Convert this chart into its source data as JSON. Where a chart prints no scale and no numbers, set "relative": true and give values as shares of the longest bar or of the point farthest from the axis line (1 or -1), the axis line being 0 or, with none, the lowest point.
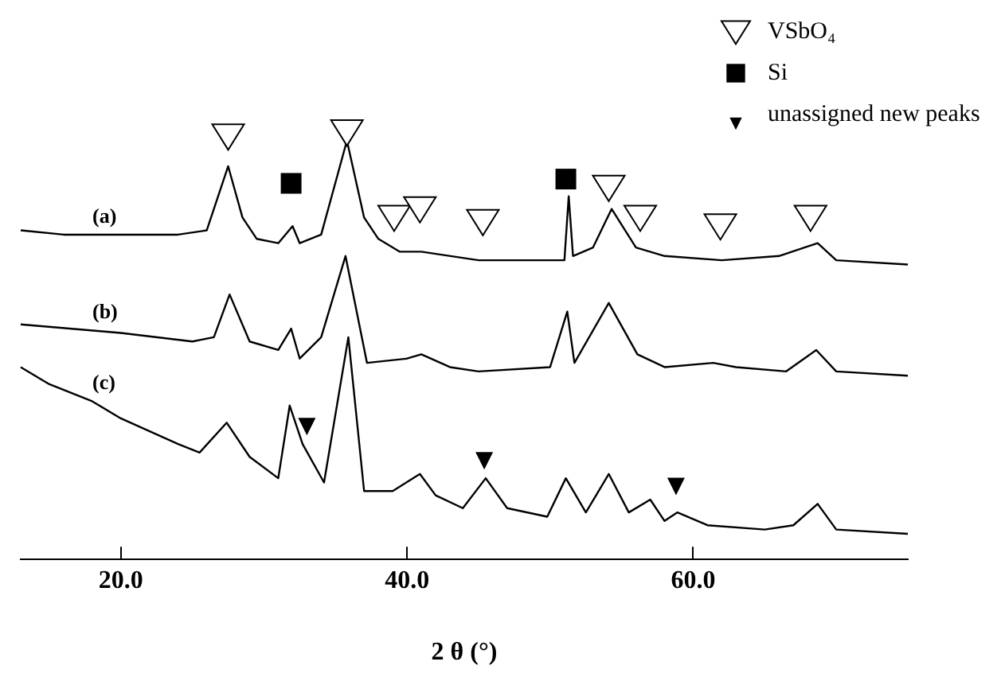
{
  "chart_data": {
    "type": "line",
    "relative": true,
    "xlabel": "2 θ (°)",
    "xlim": [
      13,
      75
    ],
    "xticks": [
      {
        "value": 20,
        "label": "20.0"
      },
      {
        "value": 40,
        "label": "40.0"
      },
      {
        "value": 60,
        "label": "60.0"
      }
    ],
    "tick_labels": "x",
    "grid": false,
    "legend": "top right",
    "marker": "none",
    "line_style": "solid",
    "series": [
      {
        "name": "(a)",
        "color": "#000000",
        "x": [
          13,
          16,
          20,
          24,
          26,
          27.5,
          28.5,
          29.5,
          31,
          32,
          32.5,
          34,
          35.8,
          37,
          38,
          39.5,
          41,
          45,
          48,
          51,
          51.3,
          51.6,
          53,
          54.3,
          56,
          58,
          62,
          66,
          68.7,
          70,
          75
        ],
        "values": [
          0.77,
          0.76,
          0.76,
          0.76,
          0.77,
          0.92,
          0.8,
          0.75,
          0.74,
          0.78,
          0.74,
          0.76,
          0.98,
          0.8,
          0.75,
          0.72,
          0.72,
          0.7,
          0.7,
          0.7,
          0.85,
          0.71,
          0.73,
          0.82,
          0.73,
          0.71,
          0.7,
          0.71,
          0.74,
          0.7,
          0.69
        ]
      },
      {
        "name": "(b)",
        "color": "#000000",
        "x": [
          13,
          20,
          25,
          26.5,
          27.6,
          29,
          31,
          31.9,
          32.5,
          34,
          35.7,
          37.2,
          40,
          41,
          43,
          45,
          50,
          51.2,
          51.7,
          54.1,
          56.1,
          58,
          61.4,
          63,
          66.5,
          68.6,
          70,
          75
        ],
        "values": [
          0.55,
          0.53,
          0.51,
          0.52,
          0.62,
          0.51,
          0.49,
          0.54,
          0.47,
          0.52,
          0.71,
          0.46,
          0.47,
          0.48,
          0.45,
          0.44,
          0.45,
          0.58,
          0.46,
          0.6,
          0.48,
          0.45,
          0.46,
          0.45,
          0.44,
          0.49,
          0.44,
          0.43
        ]
      },
      {
        "name": "(c)",
        "color": "#000000",
        "x": [
          13,
          15,
          18,
          20,
          24,
          25.5,
          27.4,
          29,
          31,
          31.8,
          32.7,
          34.2,
          35.9,
          37,
          39,
          40.9,
          42,
          43.9,
          45.5,
          47,
          49.8,
          51.1,
          52.5,
          54.1,
          55.5,
          57,
          58,
          58.9,
          61,
          65,
          67,
          68.7,
          70,
          75
        ],
        "values": [
          0.45,
          0.41,
          0.37,
          0.33,
          0.27,
          0.25,
          0.32,
          0.24,
          0.19,
          0.36,
          0.27,
          0.18,
          0.52,
          0.16,
          0.16,
          0.2,
          0.15,
          0.12,
          0.19,
          0.12,
          0.1,
          0.19,
          0.11,
          0.2,
          0.11,
          0.14,
          0.09,
          0.11,
          0.08,
          0.07,
          0.08,
          0.13,
          0.07,
          0.06
        ]
      },
      {
        "name": "VSbO₄",
        "type": "scatter",
        "marker": "triangle",
        "color": "#ffffff",
        "x": [
          27.5,
          35.8,
          39.1,
          40.9,
          45.3,
          54.1,
          56.3,
          61.9,
          68.2
        ],
        "values": [
          0.99,
          1,
          0.8,
          0.82,
          0.79,
          0.87,
          0.8,
          0.78,
          0.8
        ]
      },
      {
        "name": "Si",
        "type": "scatter",
        "marker": "square",
        "color": "#000000",
        "x": [
          31.9,
          51.1
        ],
        "values": [
          0.88,
          0.89
        ]
      },
      {
        "name": "unassigned new peaks",
        "type": "scatter",
        "marker": "triangle",
        "color": "#000000",
        "x": [
          33,
          45.4,
          58.8
        ],
        "values": [
          0.32,
          0.24,
          0.18
        ]
      }
    ]
  }
}
